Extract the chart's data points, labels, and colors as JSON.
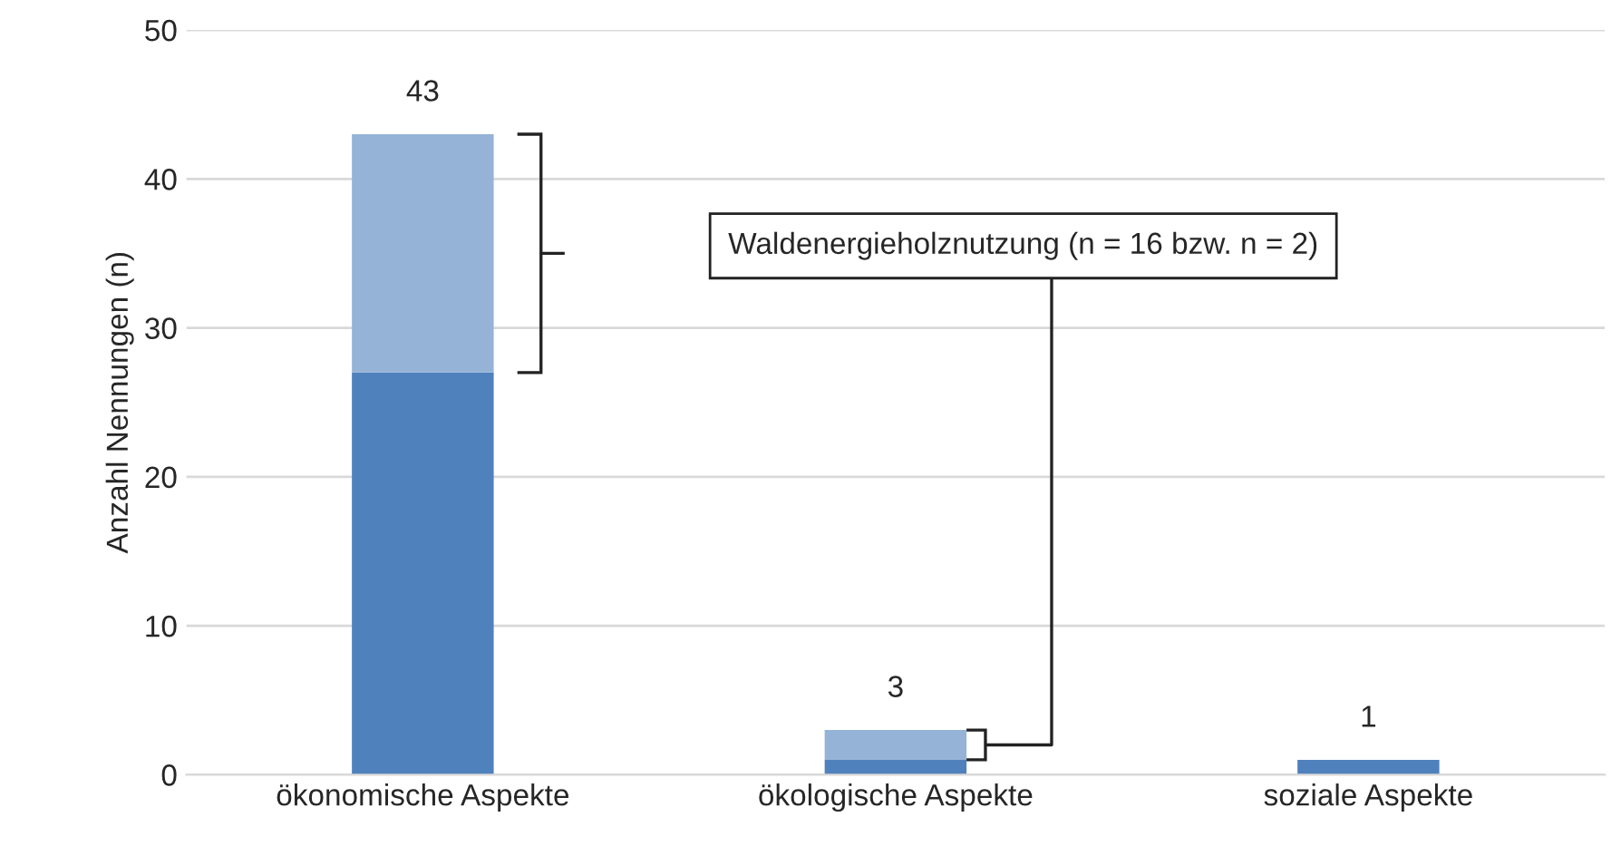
{
  "chart_data": {
    "type": "bar",
    "stacked": true,
    "ylabel": "Anzahl Nennungen (n)",
    "categories": [
      "ökonomische Aspekte",
      "ökologische Aspekte",
      "soziale Aspekte"
    ],
    "series": [
      {
        "color": "#4f81bd",
        "values": [
          27,
          1,
          1
        ]
      },
      {
        "color": "#95b3d7",
        "values": [
          16,
          2,
          null
        ]
      }
    ],
    "totals": [
      "43",
      "3",
      "1"
    ],
    "ylim": [
      0,
      50
    ],
    "yticks": [
      0,
      10,
      20,
      30,
      40,
      50
    ],
    "grid": "y",
    "legend": false,
    "annotations": [
      "Waldenergieholznutzung (n = 16 bzw. n = 2)"
    ]
  }
}
